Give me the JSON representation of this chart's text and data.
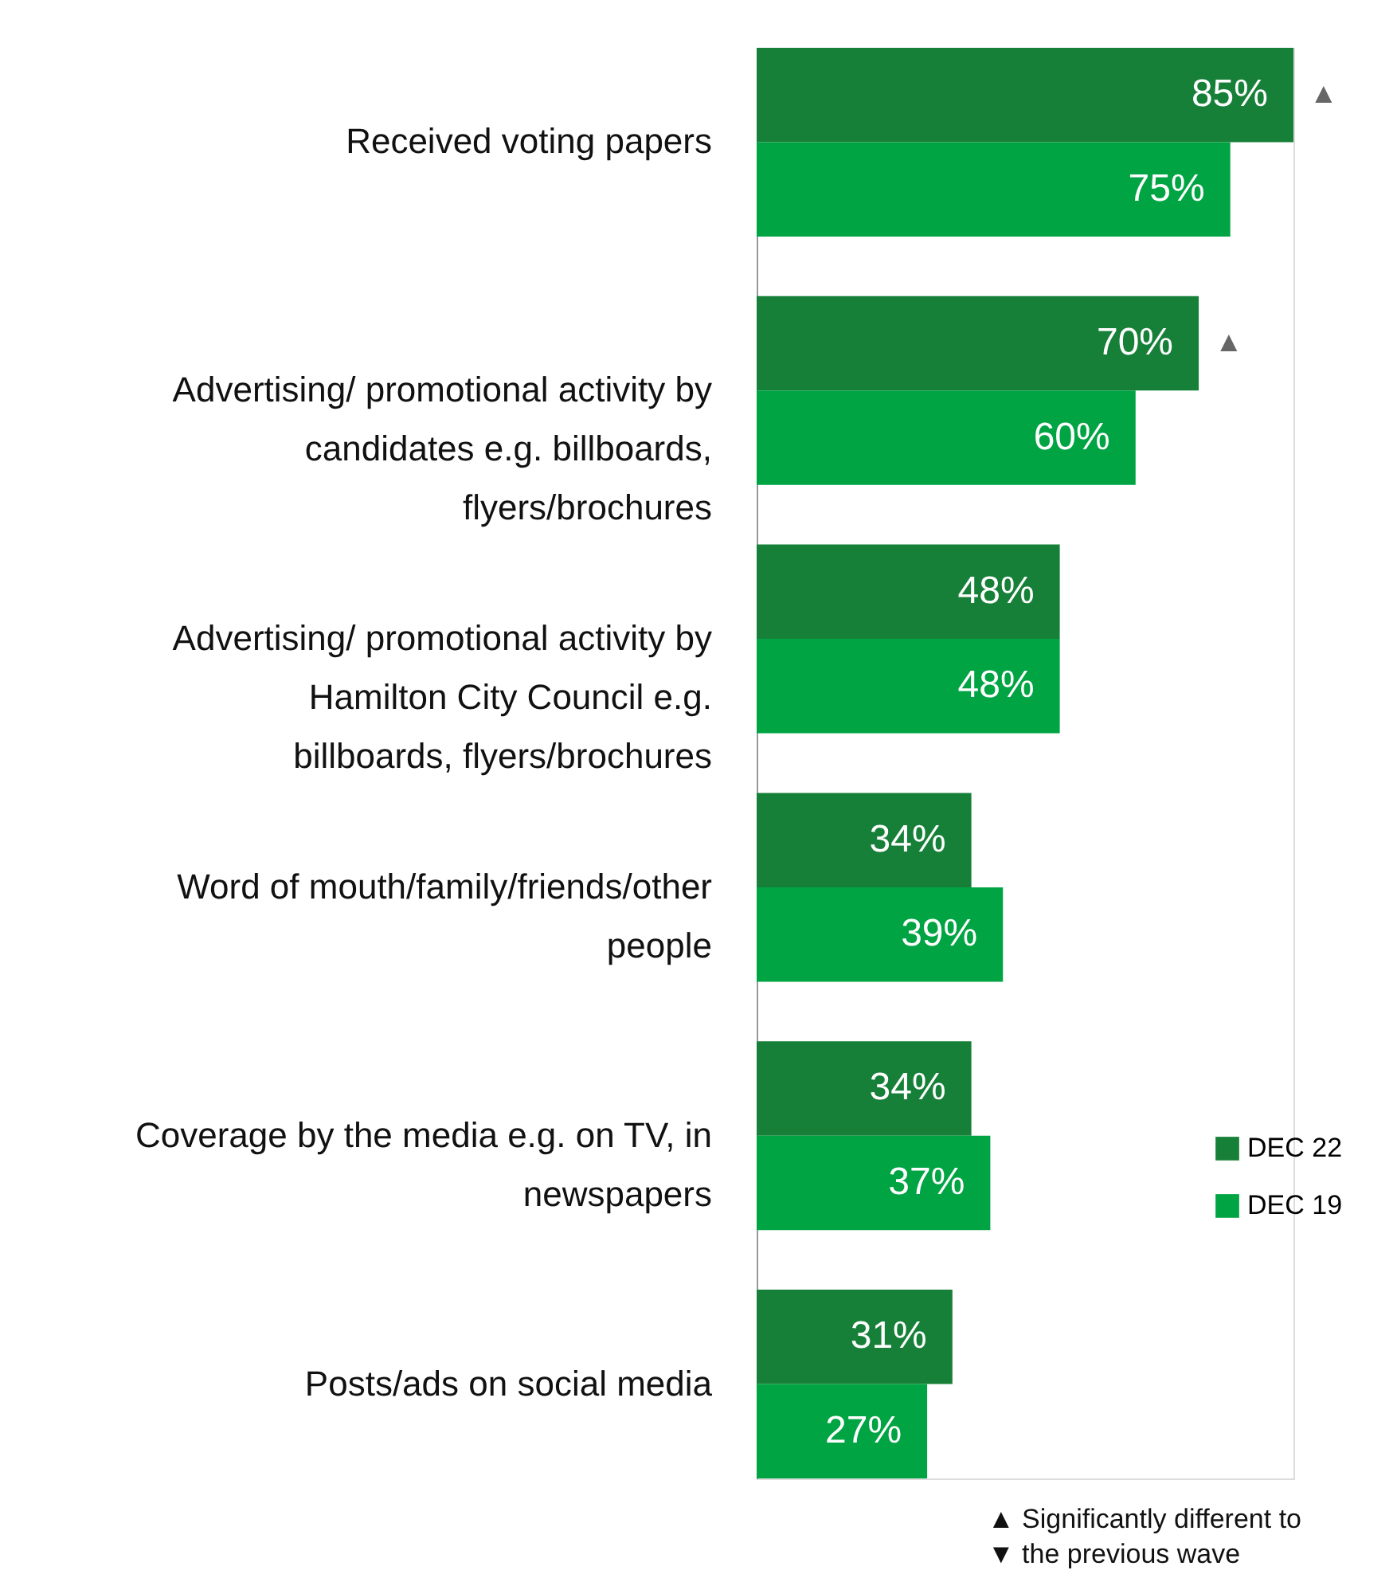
{
  "chart_data": {
    "type": "bar",
    "orientation": "horizontal",
    "categories": [
      "Received voting papers",
      "Advertising/ promotional activity by candidates e.g. billboards, flyers/brochures",
      "Advertising/ promotional activity by Hamilton City Council e.g. billboards, flyers/brochures",
      "Word of mouth/family/friends/other people",
      "Coverage by the media e.g. on TV, in newspapers",
      "Posts/ads on social media"
    ],
    "series": [
      {
        "name": "DEC 22",
        "color": "#178038",
        "values": [
          85,
          70,
          48,
          34,
          34,
          31
        ],
        "value_labels": [
          "85%",
          "70%",
          "48%",
          "34%",
          "34%",
          "31%"
        ]
      },
      {
        "name": "DEC 19",
        "color": "#00a443",
        "values": [
          75,
          60,
          48,
          39,
          37,
          27
        ],
        "value_labels": [
          "75%",
          "60%",
          "48%",
          "39%",
          "37%",
          "27%"
        ]
      }
    ],
    "legend": "right",
    "grid": false,
    "annotations": [
      "▲",
      "▲",
      "▲ Significantly different to",
      "▼ the previous wave"
    ]
  }
}
